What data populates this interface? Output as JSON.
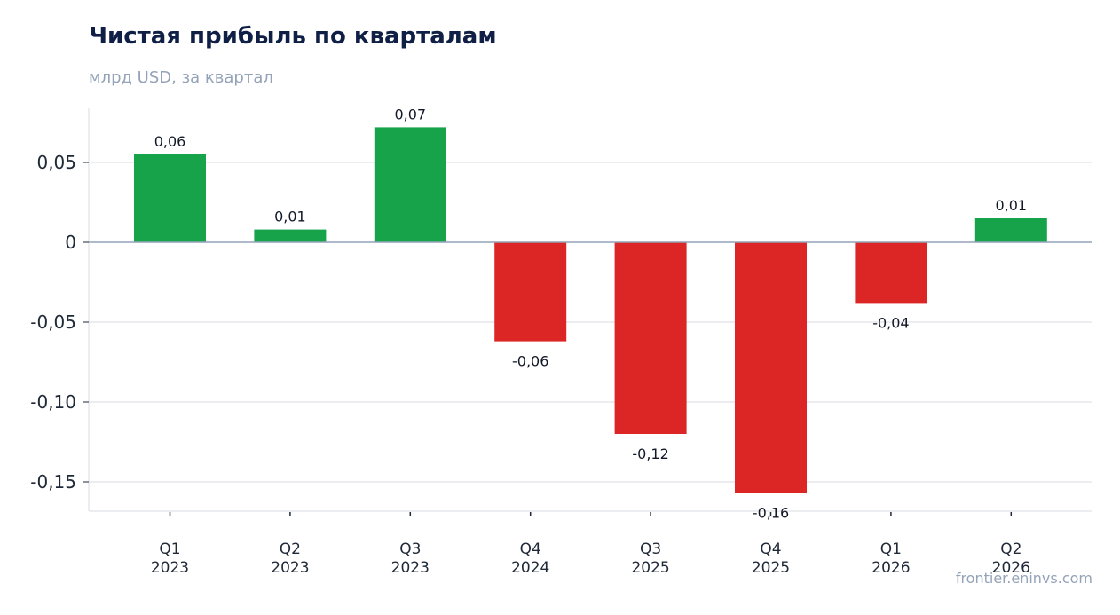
{
  "header": {
    "title": "Чистая прибыль по кварталам",
    "subtitle": "млрд USD, за квартал"
  },
  "footer": {
    "source": "frontier.eninvs.com"
  },
  "colors": {
    "positive": "#16a34a",
    "negative": "#dc2626",
    "grid": "#e5e7eb",
    "zero_line": "#94a3b8"
  },
  "chart_data": {
    "type": "bar",
    "title": "Чистая прибыль по кварталам",
    "subtitle": "млрд USD, за квартал",
    "xlabel": "",
    "ylabel": "",
    "categories": [
      [
        "Q1",
        "2023"
      ],
      [
        "Q2",
        "2023"
      ],
      [
        "Q3",
        "2023"
      ],
      [
        "Q4",
        "2024"
      ],
      [
        "Q3",
        "2025"
      ],
      [
        "Q4",
        "2025"
      ],
      [
        "Q1",
        "2026"
      ],
      [
        "Q2",
        "2026"
      ]
    ],
    "values": [
      0.055,
      0.008,
      0.072,
      -0.062,
      -0.12,
      -0.157,
      -0.038,
      0.015
    ],
    "data_labels": [
      "0,06",
      "0,01",
      "0,07",
      "-0,06",
      "-0,12",
      "-0,16",
      "-0,04",
      "0,01"
    ],
    "yticks": [
      0.05,
      0,
      -0.05,
      -0.1,
      -0.15
    ],
    "ytick_labels": [
      "0,05",
      "0",
      "-0,05",
      "-0,10",
      "-0,15"
    ],
    "ylim": [
      -0.168,
      0.084
    ],
    "grid": true,
    "legend": "none"
  }
}
